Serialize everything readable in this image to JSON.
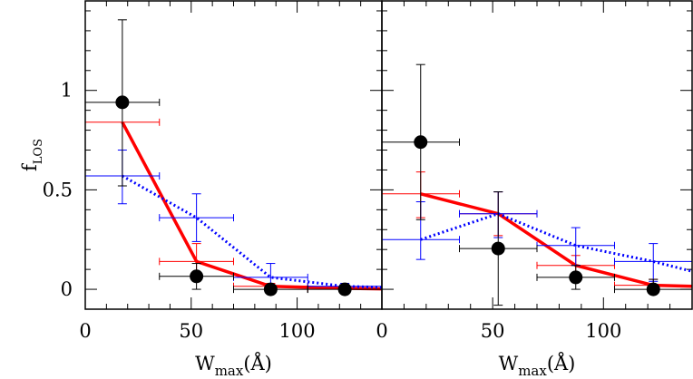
{
  "chart_data": [
    {
      "type": "errorbar",
      "xlim": [
        0,
        140
      ],
      "ylim": [
        -0.1,
        1.45
      ],
      "xticks": [
        0,
        50,
        100
      ],
      "yticks": [
        0,
        0.5,
        1
      ],
      "xminorticks": [
        10,
        20,
        30,
        40,
        60,
        70,
        80,
        90,
        110,
        120,
        130
      ],
      "yminorticks": [
        0.1,
        0.2,
        0.3,
        0.4,
        0.6,
        0.7,
        0.8,
        0.9,
        1.1,
        1.2,
        1.3,
        1.4
      ],
      "ytick_labels": true,
      "xlabel": [
        "W",
        "max",
        "(Å)"
      ],
      "ylabel": [
        "f",
        "LOS"
      ],
      "series": [
        {
          "color": "#ff0000",
          "style": "solid",
          "x": [
            17.5,
            52.5,
            87.5,
            122.5,
            140
          ],
          "values": [
            0.84,
            0.14,
            0.015,
            0.005,
            0.002
          ],
          "xerr": [
            17.5,
            17.5,
            17.5,
            17.5,
            null
          ],
          "y_low": [
            0.84,
            0.07,
            0,
            0,
            null
          ],
          "y_high": [
            0.84,
            0.23,
            0.03,
            0.01,
            null
          ]
        },
        {
          "color": "#0000ff",
          "style": "dotted",
          "x": [
            17.5,
            52.5,
            87.5,
            122.5,
            140
          ],
          "values": [
            0.57,
            0.36,
            0.06,
            0.015,
            0.01
          ],
          "xerr": [
            17.5,
            17.5,
            17.5,
            17.5,
            null
          ],
          "y_low": [
            0.43,
            0.24,
            0,
            0,
            null
          ],
          "y_high": [
            0.7,
            0.48,
            0.13,
            0.03,
            null
          ]
        },
        {
          "color": "#000000",
          "style": "markers",
          "x": [
            17.5,
            52.5,
            87.5,
            122.5
          ],
          "values": [
            0.94,
            0.065,
            0,
            0
          ],
          "xerr": [
            17.5,
            17.5,
            17.5,
            17.5
          ],
          "y_low": [
            0.52,
            0,
            0,
            0
          ],
          "y_high": [
            1.355,
            0.13,
            0.02,
            0.01
          ]
        }
      ]
    },
    {
      "type": "errorbar",
      "xlim": [
        0,
        140
      ],
      "ylim": [
        -0.1,
        1.45
      ],
      "xticks": [
        0,
        50,
        100
      ],
      "yticks": [
        0,
        0.5,
        1
      ],
      "xminorticks": [
        10,
        20,
        30,
        40,
        60,
        70,
        80,
        90,
        110,
        120,
        130
      ],
      "yminorticks": [
        0.1,
        0.2,
        0.3,
        0.4,
        0.6,
        0.7,
        0.8,
        0.9,
        1.1,
        1.2,
        1.3,
        1.4
      ],
      "ytick_labels": false,
      "xlabel": [
        "W",
        "max",
        "(Å)"
      ],
      "series": [
        {
          "color": "#ff0000",
          "style": "solid",
          "x": [
            17.5,
            52.5,
            87.5,
            122.5,
            140
          ],
          "values": [
            0.48,
            0.38,
            0.12,
            0.02,
            0.015
          ],
          "xerr": [
            17.5,
            17.5,
            17.5,
            17.5,
            null
          ],
          "y_low": [
            0.36,
            0.27,
            0.06,
            0,
            null
          ],
          "y_high": [
            0.59,
            0.49,
            0.17,
            0.05,
            null
          ]
        },
        {
          "color": "#0000ff",
          "style": "dotted",
          "x": [
            17.5,
            52.5,
            87.5,
            122.5,
            140
          ],
          "values": [
            0.25,
            0.38,
            0.22,
            0.14,
            0.09
          ],
          "xerr": [
            17.5,
            17.5,
            17.5,
            17.5,
            null
          ],
          "y_low": [
            0.15,
            0.26,
            0.12,
            0.04,
            null
          ],
          "y_high": [
            0.44,
            0.49,
            0.31,
            0.23,
            null
          ]
        },
        {
          "color": "#000000",
          "style": "markers",
          "x": [
            17.5,
            52.5,
            87.5,
            122.5
          ],
          "values": [
            0.74,
            0.205,
            0.06,
            0
          ],
          "xerr": [
            17.5,
            17.5,
            17.5,
            17.5
          ],
          "y_low": [
            0.35,
            -0.08,
            0,
            0
          ],
          "y_high": [
            1.13,
            0.49,
            0.12,
            0.05
          ]
        }
      ]
    }
  ]
}
